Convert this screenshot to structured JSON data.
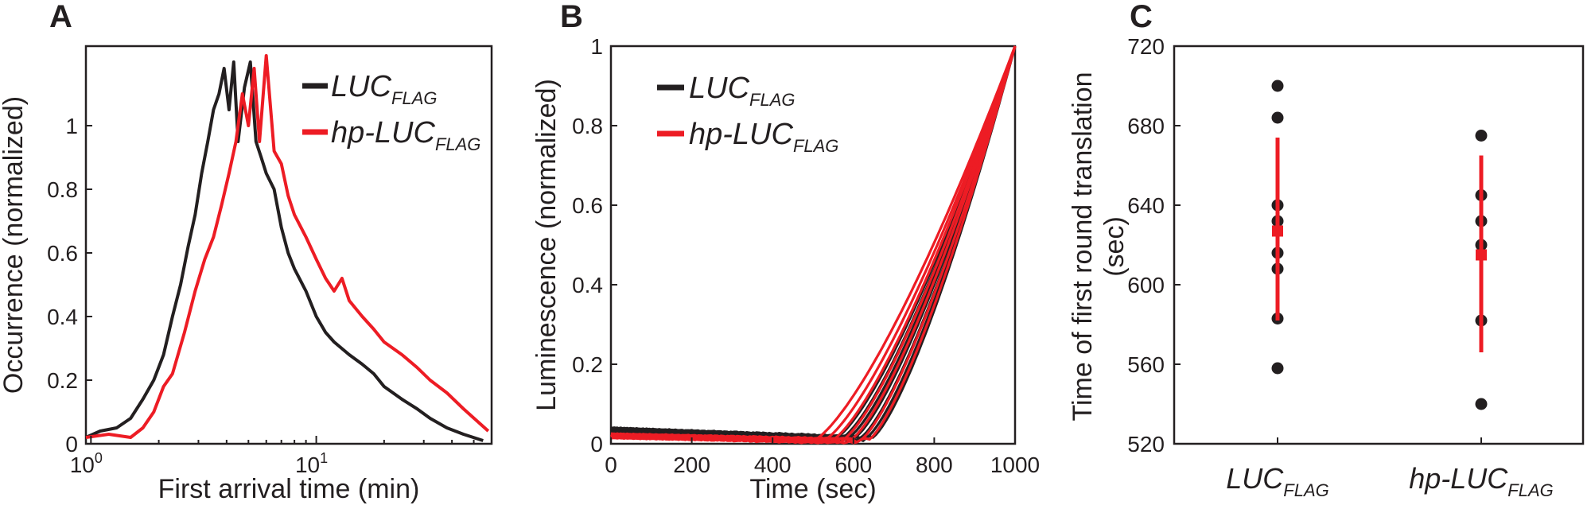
{
  "colors": {
    "luc": "#231f20",
    "hp": "#ed1c24",
    "axis": "#231f20"
  },
  "chart_data": [
    {
      "panel": "A",
      "type": "line",
      "xscale": "log",
      "xlabel": "First arrival time (min)",
      "ylabel": "Occurrence (normalized)",
      "xlim": [
        0.95,
        60
      ],
      "ylim": [
        0,
        1.25
      ],
      "xticks": [
        {
          "v": 1,
          "base": "10",
          "exp": "0"
        },
        {
          "v": 10,
          "base": "10",
          "exp": "1"
        }
      ],
      "yticks": [
        "0",
        "0.2",
        "0.4",
        "0.6",
        "0.8",
        "1"
      ],
      "legend_position": "top-right",
      "series": [
        {
          "name": "LUC",
          "sub": "FLAG",
          "color": "#231f20",
          "points": [
            [
              0.95,
              0.02
            ],
            [
              1.1,
              0.04
            ],
            [
              1.3,
              0.05
            ],
            [
              1.5,
              0.08
            ],
            [
              1.7,
              0.14
            ],
            [
              1.9,
              0.2
            ],
            [
              2.1,
              0.28
            ],
            [
              2.3,
              0.4
            ],
            [
              2.5,
              0.5
            ],
            [
              2.7,
              0.62
            ],
            [
              2.9,
              0.72
            ],
            [
              3.1,
              0.85
            ],
            [
              3.3,
              0.95
            ],
            [
              3.5,
              1.05
            ],
            [
              3.7,
              1.1
            ],
            [
              3.9,
              1.18
            ],
            [
              4.1,
              1.05
            ],
            [
              4.3,
              1.2
            ],
            [
              4.5,
              0.95
            ],
            [
              4.8,
              1.12
            ],
            [
              5.1,
              1.2
            ],
            [
              5.4,
              0.95
            ],
            [
              5.7,
              0.9
            ],
            [
              6.0,
              0.85
            ],
            [
              6.5,
              0.8
            ],
            [
              7.0,
              0.68
            ],
            [
              7.5,
              0.6
            ],
            [
              8.0,
              0.55
            ],
            [
              9.0,
              0.48
            ],
            [
              10,
              0.4
            ],
            [
              11,
              0.35
            ],
            [
              12,
              0.32
            ],
            [
              14,
              0.28
            ],
            [
              16,
              0.25
            ],
            [
              18,
              0.22
            ],
            [
              20,
              0.18
            ],
            [
              24,
              0.14
            ],
            [
              28,
              0.11
            ],
            [
              32,
              0.08
            ],
            [
              38,
              0.05
            ],
            [
              45,
              0.03
            ],
            [
              55,
              0.01
            ]
          ]
        },
        {
          "name": "hp-LUC",
          "sub": "FLAG",
          "color": "#ed1c24",
          "points": [
            [
              0.95,
              0.02
            ],
            [
              1.2,
              0.03
            ],
            [
              1.5,
              0.02
            ],
            [
              1.7,
              0.05
            ],
            [
              1.9,
              0.1
            ],
            [
              2.1,
              0.18
            ],
            [
              2.3,
              0.22
            ],
            [
              2.6,
              0.35
            ],
            [
              2.9,
              0.48
            ],
            [
              3.2,
              0.58
            ],
            [
              3.5,
              0.65
            ],
            [
              3.8,
              0.75
            ],
            [
              4.1,
              0.85
            ],
            [
              4.4,
              0.95
            ],
            [
              4.7,
              1.1
            ],
            [
              5.0,
              1.0
            ],
            [
              5.3,
              1.18
            ],
            [
              5.6,
              0.95
            ],
            [
              6.0,
              1.22
            ],
            [
              6.5,
              0.92
            ],
            [
              7.0,
              0.88
            ],
            [
              7.5,
              0.78
            ],
            [
              8.0,
              0.72
            ],
            [
              9.0,
              0.65
            ],
            [
              10,
              0.58
            ],
            [
              11,
              0.52
            ],
            [
              12,
              0.48
            ],
            [
              13,
              0.52
            ],
            [
              14,
              0.45
            ],
            [
              16,
              0.4
            ],
            [
              18,
              0.36
            ],
            [
              20,
              0.32
            ],
            [
              24,
              0.28
            ],
            [
              28,
              0.24
            ],
            [
              32,
              0.2
            ],
            [
              38,
              0.16
            ],
            [
              45,
              0.11
            ],
            [
              52,
              0.07
            ],
            [
              58,
              0.04
            ]
          ]
        }
      ]
    },
    {
      "panel": "B",
      "type": "line",
      "xlabel": "Time (sec)",
      "ylabel": "Luminescence (normalized)",
      "xlim": [
        0,
        1000
      ],
      "ylim": [
        0,
        1
      ],
      "xticks": [
        "0",
        "200",
        "400",
        "600",
        "800",
        "1000"
      ],
      "yticks": [
        "0",
        "0.2",
        "0.4",
        "0.6",
        "0.8",
        "1"
      ],
      "legend_position": "top-left",
      "series": [
        {
          "name": "LUC",
          "sub": "FLAG",
          "color": "#231f20",
          "onsets": [
            555,
            570,
            585,
            600,
            615,
            630,
            645
          ],
          "baseline": 0.035
        },
        {
          "name": "hp-LUC",
          "sub": "FLAG",
          "color": "#ed1c24",
          "onsets": [
            500,
            525,
            545,
            570,
            590,
            615,
            635
          ],
          "baseline": 0.02
        }
      ]
    },
    {
      "panel": "C",
      "type": "scatter",
      "xlabel": "",
      "ylabel_lines": [
        "Time of first round translation",
        "(sec)"
      ],
      "ylim": [
        520,
        720
      ],
      "yticks": [
        "520",
        "560",
        "600",
        "640",
        "680",
        "720"
      ],
      "categories": [
        {
          "name": "LUC",
          "sub": "FLAG",
          "points": [
            700,
            684,
            640,
            632,
            616,
            608,
            583,
            558
          ],
          "mean": 627,
          "err_low": 582,
          "err_high": 674
        },
        {
          "name": "hp-LUC",
          "sub": "FLAG",
          "points": [
            675,
            645,
            632,
            620,
            582,
            540
          ],
          "mean": 615,
          "err_low": 566,
          "err_high": 665
        }
      ]
    }
  ],
  "panels": {
    "a": "A",
    "b": "B",
    "c": "C"
  }
}
